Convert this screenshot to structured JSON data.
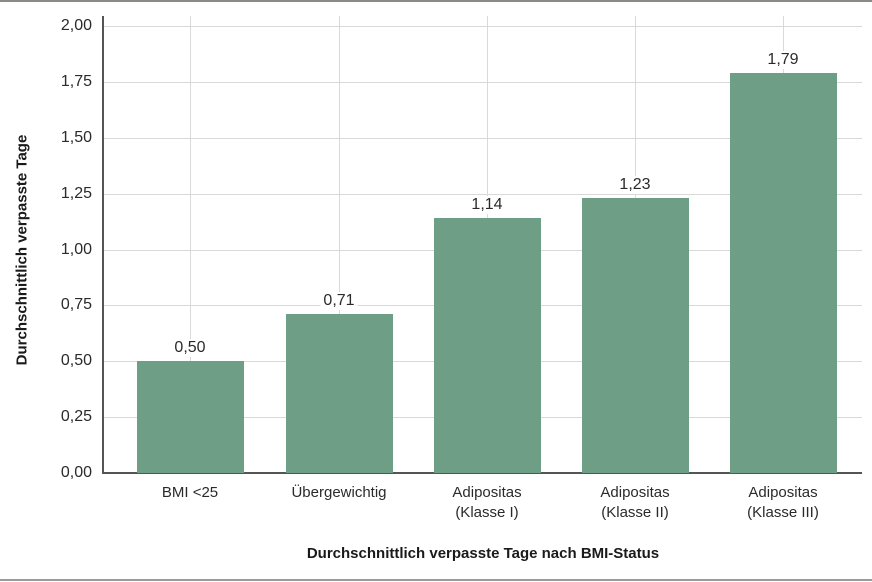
{
  "chart_data": {
    "type": "bar",
    "title": "",
    "xlabel": "Durchschnittlich verpasste Tage nach BMI-Status",
    "ylabel": "Durchschnittlich verpasste Tage",
    "categories": [
      "BMI <25",
      "Übergewichtig",
      "Adipositas (Klasse I)",
      "Adipositas (Klasse II)",
      "Adipositas (Klasse III)"
    ],
    "category_lines": [
      [
        "BMI <25"
      ],
      [
        "Übergewichtig"
      ],
      [
        "Adipositas",
        "(Klasse I)"
      ],
      [
        "Adipositas",
        "(Klasse II)"
      ],
      [
        "Adipositas",
        "(Klasse III)"
      ]
    ],
    "values": [
      0.5,
      0.71,
      1.14,
      1.23,
      1.79
    ],
    "value_labels": [
      "0,50",
      "0,71",
      "1,14",
      "1,23",
      "1,79"
    ],
    "ylim": [
      0,
      2.0
    ],
    "yticks": [
      0.0,
      0.25,
      0.5,
      0.75,
      1.0,
      1.25,
      1.5,
      1.75,
      2.0
    ],
    "ytick_labels": [
      "0,00",
      "0,25",
      "0,50",
      "0,75",
      "1,00",
      "1,25",
      "1,50",
      "1,75",
      "2,00"
    ],
    "grid": true,
    "legend": null,
    "bar_color": "#6e9e86"
  }
}
